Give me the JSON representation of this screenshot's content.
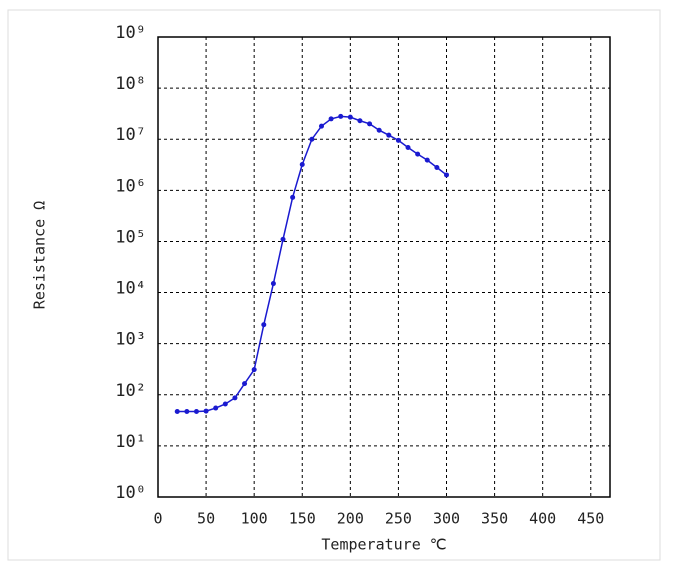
{
  "chart_data": {
    "type": "line",
    "x_label": "Temperature ℃",
    "y_label": "Resistance  Ω",
    "log_y": true,
    "grid": true,
    "xlim": [
      0,
      470
    ],
    "xticks": [
      0,
      50,
      100,
      150,
      200,
      250,
      300,
      350,
      400,
      450
    ],
    "ylim": [
      1,
      1000000000
    ],
    "yticks": [
      {
        "value": 1,
        "label": "10⁰"
      },
      {
        "value": 10,
        "label": "10¹"
      },
      {
        "value": 100,
        "label": "10²"
      },
      {
        "value": 1000,
        "label": "10³"
      },
      {
        "value": 10000,
        "label": "10⁴"
      },
      {
        "value": 100000,
        "label": "10⁵"
      },
      {
        "value": 1000000,
        "label": "10⁶"
      },
      {
        "value": 10000000,
        "label": "10⁷"
      },
      {
        "value": 100000000,
        "label": "10⁸"
      },
      {
        "value": 1000000000,
        "label": "10⁹"
      }
    ],
    "x": [
      20,
      30,
      40,
      50,
      60,
      70,
      80,
      90,
      100,
      110,
      120,
      130,
      140,
      150,
      160,
      170,
      180,
      190,
      200,
      210,
      220,
      230,
      240,
      250,
      260,
      270,
      280,
      290,
      300
    ],
    "series": [
      {
        "color": "#1a1ad0",
        "values": [
          47,
          47,
          47,
          48,
          55,
          66,
          87,
          165,
          310,
          2350,
          15000,
          110000,
          730000,
          3200000,
          10000000,
          18000000,
          25000000,
          28000000,
          27000000,
          23000000,
          20000000,
          15000000,
          12000000,
          9500000,
          6900000,
          5100000,
          3900000,
          2800000,
          2000000
        ]
      }
    ]
  }
}
